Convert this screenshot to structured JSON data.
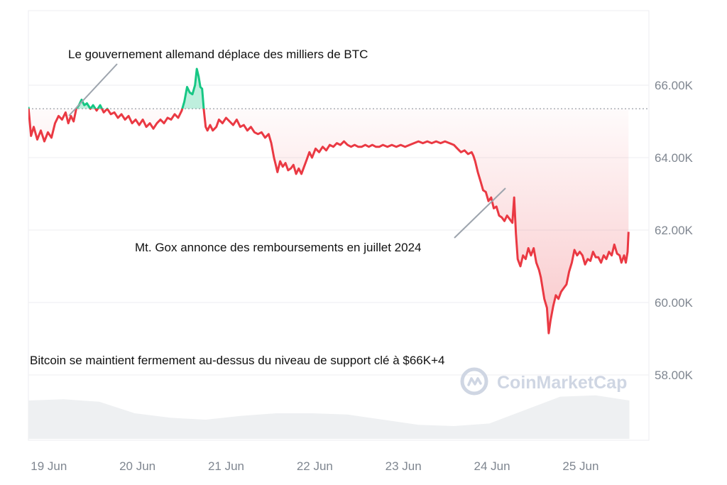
{
  "chart_data": {
    "type": "line",
    "ylim": [
      56000,
      68000
    ],
    "y_ticks": [
      "66.00K",
      "64.00K",
      "62.00K",
      "60.00K",
      "58.00K"
    ],
    "y_tick_values": [
      66000,
      64000,
      62000,
      60000,
      58000
    ],
    "x_ticks": [
      "19 Jun",
      "20 Jun",
      "21 Jun",
      "22 Jun",
      "23 Jun",
      "24 Jun",
      "25 Jun"
    ],
    "x_tick_positions": [
      0.05,
      1.05,
      2.05,
      3.05,
      4.05,
      5.05,
      6.05
    ],
    "xlim": [
      0,
      7.0
    ],
    "baseline": 65350,
    "colors": {
      "up": "#16c784",
      "down": "#ea3943",
      "grid": "#edeef1",
      "volume": "#eef0f2"
    },
    "series": [
      {
        "values": [
          [
            0.0,
            65400
          ],
          [
            0.03,
            64600
          ],
          [
            0.06,
            64850
          ],
          [
            0.1,
            64500
          ],
          [
            0.14,
            64750
          ],
          [
            0.18,
            64450
          ],
          [
            0.22,
            64700
          ],
          [
            0.26,
            64550
          ],
          [
            0.3,
            64950
          ],
          [
            0.34,
            65150
          ],
          [
            0.38,
            65050
          ],
          [
            0.42,
            65250
          ],
          [
            0.45,
            64950
          ],
          [
            0.48,
            65150
          ],
          [
            0.51,
            65000
          ],
          [
            0.54,
            65350
          ],
          [
            0.57,
            65450
          ],
          [
            0.6,
            65600
          ],
          [
            0.63,
            65450
          ],
          [
            0.66,
            65500
          ],
          [
            0.7,
            65350
          ],
          [
            0.73,
            65450
          ],
          [
            0.77,
            65300
          ],
          [
            0.81,
            65450
          ],
          [
            0.85,
            65250
          ],
          [
            0.89,
            65350
          ],
          [
            0.93,
            65200
          ],
          [
            0.97,
            65250
          ],
          [
            1.01,
            65100
          ],
          [
            1.05,
            65200
          ],
          [
            1.09,
            65050
          ],
          [
            1.13,
            65150
          ],
          [
            1.17,
            64950
          ],
          [
            1.21,
            65050
          ],
          [
            1.25,
            64900
          ],
          [
            1.29,
            65050
          ],
          [
            1.33,
            64850
          ],
          [
            1.37,
            64950
          ],
          [
            1.41,
            64800
          ],
          [
            1.45,
            64950
          ],
          [
            1.49,
            65050
          ],
          [
            1.53,
            64950
          ],
          [
            1.57,
            65100
          ],
          [
            1.61,
            65050
          ],
          [
            1.65,
            65200
          ],
          [
            1.69,
            65100
          ],
          [
            1.73,
            65300
          ],
          [
            1.76,
            65550
          ],
          [
            1.79,
            65950
          ],
          [
            1.82,
            65800
          ],
          [
            1.85,
            65750
          ],
          [
            1.88,
            66000
          ],
          [
            1.9,
            66450
          ],
          [
            1.92,
            66250
          ],
          [
            1.94,
            65950
          ],
          [
            1.96,
            65900
          ],
          [
            1.98,
            65300
          ],
          [
            2.0,
            64850
          ],
          [
            2.02,
            64750
          ],
          [
            2.05,
            64900
          ],
          [
            2.08,
            64750
          ],
          [
            2.12,
            64850
          ],
          [
            2.15,
            65050
          ],
          [
            2.19,
            64950
          ],
          [
            2.23,
            65100
          ],
          [
            2.27,
            65000
          ],
          [
            2.31,
            64900
          ],
          [
            2.35,
            65050
          ],
          [
            2.39,
            64850
          ],
          [
            2.43,
            64900
          ],
          [
            2.47,
            64750
          ],
          [
            2.51,
            64850
          ],
          [
            2.55,
            64700
          ],
          [
            2.59,
            64650
          ],
          [
            2.63,
            64700
          ],
          [
            2.67,
            64550
          ],
          [
            2.71,
            64650
          ],
          [
            2.74,
            64400
          ],
          [
            2.77,
            64000
          ],
          [
            2.79,
            63800
          ],
          [
            2.81,
            63600
          ],
          [
            2.84,
            63900
          ],
          [
            2.87,
            63750
          ],
          [
            2.9,
            63850
          ],
          [
            2.93,
            63650
          ],
          [
            2.96,
            63700
          ],
          [
            2.99,
            63800
          ],
          [
            3.02,
            63550
          ],
          [
            3.05,
            63700
          ],
          [
            3.08,
            63550
          ],
          [
            3.11,
            63750
          ],
          [
            3.14,
            63950
          ],
          [
            3.17,
            64150
          ],
          [
            3.2,
            64000
          ],
          [
            3.24,
            64250
          ],
          [
            3.28,
            64150
          ],
          [
            3.32,
            64300
          ],
          [
            3.36,
            64200
          ],
          [
            3.4,
            64350
          ],
          [
            3.44,
            64300
          ],
          [
            3.48,
            64400
          ],
          [
            3.52,
            64350
          ],
          [
            3.56,
            64450
          ],
          [
            3.6,
            64350
          ],
          [
            3.64,
            64300
          ],
          [
            3.68,
            64350
          ],
          [
            3.72,
            64300
          ],
          [
            3.76,
            64300
          ],
          [
            3.8,
            64350
          ],
          [
            3.84,
            64300
          ],
          [
            3.88,
            64350
          ],
          [
            3.92,
            64300
          ],
          [
            3.96,
            64300
          ],
          [
            4.0,
            64350
          ],
          [
            4.05,
            64300
          ],
          [
            4.1,
            64350
          ],
          [
            4.15,
            64300
          ],
          [
            4.2,
            64350
          ],
          [
            4.25,
            64300
          ],
          [
            4.3,
            64350
          ],
          [
            4.35,
            64400
          ],
          [
            4.4,
            64450
          ],
          [
            4.45,
            64400
          ],
          [
            4.5,
            64450
          ],
          [
            4.55,
            64400
          ],
          [
            4.6,
            64450
          ],
          [
            4.65,
            64400
          ],
          [
            4.7,
            64450
          ],
          [
            4.75,
            64400
          ],
          [
            4.8,
            64350
          ],
          [
            4.84,
            64250
          ],
          [
            4.88,
            64150
          ],
          [
            4.92,
            64200
          ],
          [
            4.96,
            64100
          ],
          [
            5.0,
            64150
          ],
          [
            5.02,
            64050
          ],
          [
            5.04,
            63900
          ],
          [
            5.07,
            63600
          ],
          [
            5.1,
            63350
          ],
          [
            5.13,
            63100
          ],
          [
            5.16,
            63050
          ],
          [
            5.19,
            62800
          ],
          [
            5.22,
            62900
          ],
          [
            5.25,
            62600
          ],
          [
            5.28,
            62650
          ],
          [
            5.31,
            62400
          ],
          [
            5.34,
            62350
          ],
          [
            5.37,
            62250
          ],
          [
            5.4,
            62400
          ],
          [
            5.43,
            62300
          ],
          [
            5.46,
            62200
          ],
          [
            5.48,
            62900
          ],
          [
            5.5,
            61900
          ],
          [
            5.52,
            61200
          ],
          [
            5.55,
            61000
          ],
          [
            5.58,
            61300
          ],
          [
            5.61,
            61200
          ],
          [
            5.64,
            61500
          ],
          [
            5.67,
            61300
          ],
          [
            5.7,
            61500
          ],
          [
            5.73,
            61100
          ],
          [
            5.76,
            60900
          ],
          [
            5.78,
            60700
          ],
          [
            5.8,
            60400
          ],
          [
            5.82,
            60100
          ],
          [
            5.85,
            59850
          ],
          [
            5.87,
            59150
          ],
          [
            5.89,
            59500
          ],
          [
            5.92,
            59900
          ],
          [
            5.95,
            60200
          ],
          [
            5.98,
            60100
          ],
          [
            6.01,
            60300
          ],
          [
            6.04,
            60400
          ],
          [
            6.07,
            60500
          ],
          [
            6.1,
            60850
          ],
          [
            6.13,
            61100
          ],
          [
            6.16,
            61450
          ],
          [
            6.19,
            61300
          ],
          [
            6.22,
            61400
          ],
          [
            6.25,
            61300
          ],
          [
            6.28,
            61050
          ],
          [
            6.31,
            61200
          ],
          [
            6.34,
            61150
          ],
          [
            6.37,
            61400
          ],
          [
            6.4,
            61250
          ],
          [
            6.43,
            61250
          ],
          [
            6.46,
            61100
          ],
          [
            6.49,
            61300
          ],
          [
            6.52,
            61200
          ],
          [
            6.55,
            61400
          ],
          [
            6.58,
            61300
          ],
          [
            6.61,
            61600
          ],
          [
            6.64,
            61350
          ],
          [
            6.67,
            61300
          ],
          [
            6.69,
            61100
          ],
          [
            6.72,
            61300
          ],
          [
            6.74,
            61100
          ],
          [
            6.76,
            61400
          ],
          [
            6.77,
            61950
          ]
        ]
      }
    ],
    "volume": [
      [
        0.0,
        0.6
      ],
      [
        0.4,
        0.62
      ],
      [
        0.8,
        0.58
      ],
      [
        1.2,
        0.4
      ],
      [
        1.6,
        0.33
      ],
      [
        2.0,
        0.3
      ],
      [
        2.4,
        0.36
      ],
      [
        2.8,
        0.4
      ],
      [
        3.2,
        0.4
      ],
      [
        3.6,
        0.38
      ],
      [
        4.0,
        0.3
      ],
      [
        4.4,
        0.22
      ],
      [
        4.8,
        0.2
      ],
      [
        5.2,
        0.24
      ],
      [
        5.6,
        0.45
      ],
      [
        6.0,
        0.66
      ],
      [
        6.4,
        0.68
      ],
      [
        6.78,
        0.6
      ]
    ],
    "annotations": [
      {
        "id": "a1",
        "text": "Le gouvernement allemand déplace des milliers de BTC"
      },
      {
        "id": "a2",
        "text": "Mt. Gox annonce des remboursements en juillet 2024"
      },
      {
        "id": "a3",
        "text": "Bitcoin se maintient fermement au-dessus du niveau de support clé à $66K+4"
      }
    ],
    "watermark": "CoinMarketCap"
  }
}
